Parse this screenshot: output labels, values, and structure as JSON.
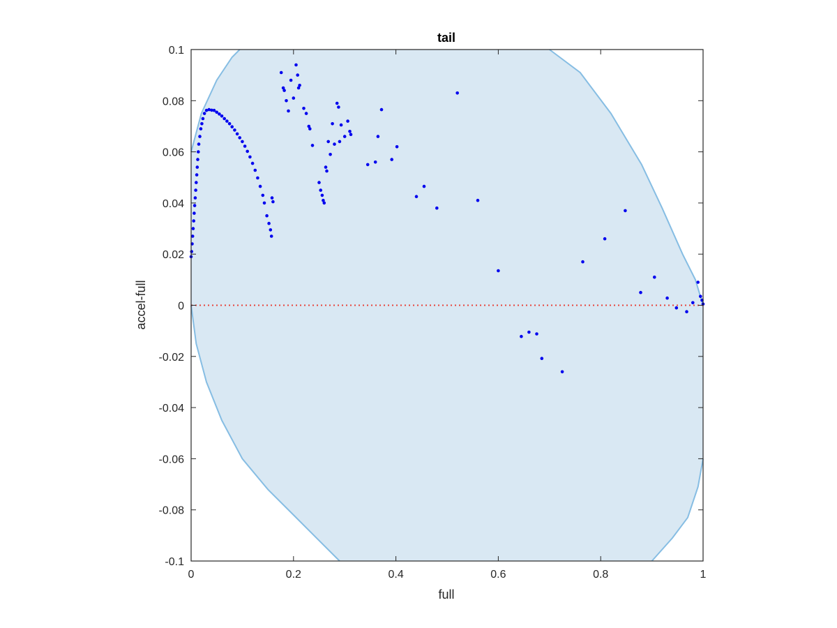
{
  "chart_data": {
    "type": "scatter",
    "title": "tail",
    "xlabel": "full",
    "ylabel": "accel-full",
    "xlim": [
      0,
      1
    ],
    "ylim": [
      -0.1,
      0.1
    ],
    "x_ticks": [
      "0",
      "0.2",
      "0.4",
      "0.6",
      "0.8",
      "1"
    ],
    "x_tick_values": [
      0,
      0.2,
      0.4,
      0.6,
      0.8,
      1
    ],
    "y_ticks": [
      "-0.1",
      "-0.08",
      "-0.06",
      "-0.04",
      "-0.02",
      "0",
      "0.02",
      "0.04",
      "0.06",
      "0.08",
      "0.1"
    ],
    "y_tick_values": [
      -0.1,
      -0.08,
      -0.06,
      -0.04,
      -0.02,
      0,
      0.02,
      0.04,
      0.06,
      0.08,
      0.1
    ],
    "grid": false,
    "colors": {
      "points": "#0000ee",
      "region_fill": "#d9e8f3",
      "region_edge": "#86bde3",
      "zero_line": "#e8433b",
      "axes": "#262626"
    },
    "zero_line": {
      "y": 0,
      "style": "dotted"
    },
    "region": {
      "description_free": true,
      "upper_boundary": [
        [
          0,
          0.06
        ],
        [
          0.02,
          0.075
        ],
        [
          0.05,
          0.088
        ],
        [
          0.08,
          0.097
        ],
        [
          0.095,
          0.1
        ],
        [
          0.7,
          0.1
        ],
        [
          0.76,
          0.091
        ],
        [
          0.82,
          0.075
        ],
        [
          0.88,
          0.055
        ],
        [
          0.92,
          0.038
        ],
        [
          0.96,
          0.02
        ],
        [
          0.985,
          0.01
        ],
        [
          1.0,
          0.0
        ]
      ],
      "lower_boundary": [
        [
          0,
          0.0
        ],
        [
          0.01,
          -0.015
        ],
        [
          0.03,
          -0.03
        ],
        [
          0.06,
          -0.045
        ],
        [
          0.1,
          -0.06
        ],
        [
          0.15,
          -0.072
        ],
        [
          0.2,
          -0.082
        ],
        [
          0.25,
          -0.092
        ],
        [
          0.29,
          -0.1
        ],
        [
          0.9,
          -0.1
        ],
        [
          0.94,
          -0.091
        ],
        [
          0.97,
          -0.083
        ],
        [
          0.99,
          -0.071
        ],
        [
          1.0,
          -0.06
        ]
      ]
    },
    "series": [
      {
        "points": [
          [
            0.0,
            0.019
          ],
          [
            0.001,
            0.021
          ],
          [
            0.002,
            0.024
          ],
          [
            0.003,
            0.027
          ],
          [
            0.004,
            0.03
          ],
          [
            0.005,
            0.033
          ],
          [
            0.006,
            0.036
          ],
          [
            0.007,
            0.039
          ],
          [
            0.008,
            0.042
          ],
          [
            0.009,
            0.045
          ],
          [
            0.01,
            0.048
          ],
          [
            0.011,
            0.051
          ],
          [
            0.012,
            0.054
          ],
          [
            0.013,
            0.057
          ],
          [
            0.014,
            0.06
          ],
          [
            0.015,
            0.063
          ],
          [
            0.017,
            0.066
          ],
          [
            0.019,
            0.069
          ],
          [
            0.021,
            0.071
          ],
          [
            0.023,
            0.073
          ],
          [
            0.026,
            0.075
          ],
          [
            0.03,
            0.0762
          ],
          [
            0.035,
            0.0765
          ],
          [
            0.04,
            0.0763
          ],
          [
            0.045,
            0.0762
          ],
          [
            0.05,
            0.0755
          ],
          [
            0.055,
            0.0748
          ],
          [
            0.06,
            0.074
          ],
          [
            0.065,
            0.073
          ],
          [
            0.07,
            0.072
          ],
          [
            0.075,
            0.071
          ],
          [
            0.08,
            0.0698
          ],
          [
            0.085,
            0.0685
          ],
          [
            0.09,
            0.067
          ],
          [
            0.095,
            0.0655
          ],
          [
            0.1,
            0.064
          ],
          [
            0.105,
            0.0622
          ],
          [
            0.11,
            0.0602
          ],
          [
            0.115,
            0.058
          ],
          [
            0.12,
            0.0555
          ],
          [
            0.125,
            0.0528
          ],
          [
            0.13,
            0.0498
          ],
          [
            0.135,
            0.0465
          ],
          [
            0.14,
            0.043
          ],
          [
            0.143,
            0.04
          ],
          [
            0.148,
            0.035
          ],
          [
            0.152,
            0.032
          ],
          [
            0.155,
            0.0295
          ],
          [
            0.157,
            0.027
          ],
          [
            0.158,
            0.042
          ],
          [
            0.16,
            0.0405
          ],
          [
            0.176,
            0.091
          ],
          [
            0.18,
            0.085
          ],
          [
            0.182,
            0.084
          ],
          [
            0.186,
            0.08
          ],
          [
            0.19,
            0.076
          ],
          [
            0.195,
            0.088
          ],
          [
            0.2,
            0.081
          ],
          [
            0.205,
            0.094
          ],
          [
            0.208,
            0.09
          ],
          [
            0.21,
            0.085
          ],
          [
            0.212,
            0.086
          ],
          [
            0.22,
            0.077
          ],
          [
            0.225,
            0.075
          ],
          [
            0.23,
            0.07
          ],
          [
            0.232,
            0.069
          ],
          [
            0.237,
            0.0625
          ],
          [
            0.25,
            0.048
          ],
          [
            0.253,
            0.045
          ],
          [
            0.256,
            0.043
          ],
          [
            0.258,
            0.041
          ],
          [
            0.26,
            0.04
          ],
          [
            0.263,
            0.054
          ],
          [
            0.265,
            0.0525
          ],
          [
            0.268,
            0.064
          ],
          [
            0.272,
            0.059
          ],
          [
            0.276,
            0.071
          ],
          [
            0.28,
            0.063
          ],
          [
            0.285,
            0.079
          ],
          [
            0.288,
            0.0775
          ],
          [
            0.29,
            0.064
          ],
          [
            0.293,
            0.0705
          ],
          [
            0.3,
            0.066
          ],
          [
            0.306,
            0.072
          ],
          [
            0.31,
            0.068
          ],
          [
            0.312,
            0.0668
          ],
          [
            0.345,
            0.055
          ],
          [
            0.36,
            0.056
          ],
          [
            0.365,
            0.066
          ],
          [
            0.372,
            0.0765
          ],
          [
            0.392,
            0.057
          ],
          [
            0.402,
            0.062
          ],
          [
            0.44,
            0.0425
          ],
          [
            0.455,
            0.0465
          ],
          [
            0.48,
            0.038
          ],
          [
            0.52,
            0.083
          ],
          [
            0.56,
            0.041
          ],
          [
            0.6,
            0.0135
          ],
          [
            0.645,
            -0.0122
          ],
          [
            0.66,
            -0.0105
          ],
          [
            0.675,
            -0.0112
          ],
          [
            0.685,
            -0.0208
          ],
          [
            0.725,
            -0.026
          ],
          [
            0.765,
            0.017
          ],
          [
            0.808,
            0.026
          ],
          [
            0.848,
            0.037
          ],
          [
            0.878,
            0.005
          ],
          [
            0.905,
            0.011
          ],
          [
            0.93,
            0.0028
          ],
          [
            0.948,
            -0.001
          ],
          [
            0.968,
            -0.0025
          ],
          [
            0.98,
            0.001
          ],
          [
            0.99,
            0.009
          ],
          [
            0.995,
            0.0035
          ],
          [
            0.998,
            0.002
          ],
          [
            1.0,
            0.0005
          ]
        ]
      }
    ]
  }
}
